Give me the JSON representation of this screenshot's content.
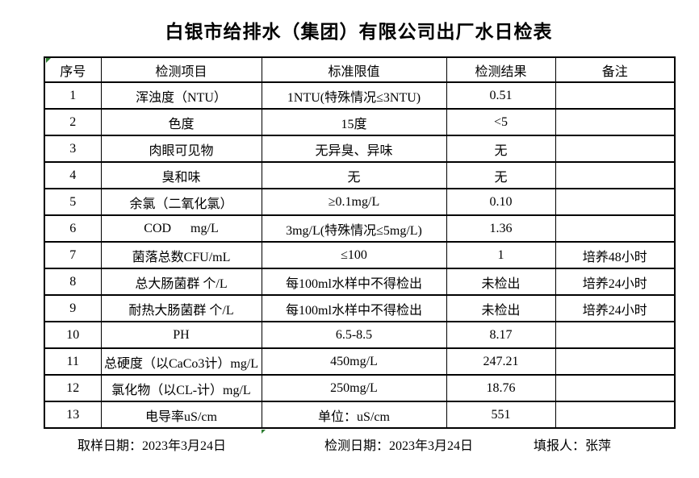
{
  "title": "白银市给排水（集团）有限公司出厂水日检表",
  "table": {
    "headers": [
      "序号",
      "检测项目",
      "标准限值",
      "检测结果",
      "备注"
    ],
    "rows": [
      [
        "1",
        "浑浊度（NTU）",
        "1NTU(特殊情况≤3NTU)",
        "0.51",
        ""
      ],
      [
        "2",
        "色度",
        "15度",
        "<5",
        ""
      ],
      [
        "3",
        "肉眼可见物",
        "无异臭、异味",
        "无",
        ""
      ],
      [
        "4",
        "臭和味",
        "无",
        "无",
        ""
      ],
      [
        "5",
        "余氯（二氧化氯）",
        "≥0.1mg/L",
        "0.10",
        ""
      ],
      [
        "6",
        "COD      mg/L",
        "3mg/L(特殊情况≤5mg/L)",
        "1.36",
        ""
      ],
      [
        "7",
        "菌落总数CFU/mL",
        "≤100",
        "1",
        "培养48小时"
      ],
      [
        "8",
        "总大肠菌群 个/L",
        "每100ml水样中不得检出",
        "未检出",
        "培养24小时"
      ],
      [
        "9",
        "耐热大肠菌群 个/L",
        "每100ml水样中不得检出",
        "未检出",
        "培养24小时"
      ],
      [
        "10",
        "PH",
        "6.5-8.5",
        "8.17",
        ""
      ],
      [
        "11",
        "总硬度（以CaCo3计）mg/L",
        "450mg/L",
        "247.21",
        ""
      ],
      [
        "12",
        "氯化物（以CL-计）mg/L",
        "250mg/L",
        "18.76",
        ""
      ],
      [
        "13",
        "电导率uS/cm",
        "单位：uS/cm",
        "551",
        ""
      ]
    ]
  },
  "footer": {
    "sampling_date": "取样日期：2023年3月24日",
    "test_date": "检测日期：2023年3月24日",
    "reporter": "填报人：张萍"
  },
  "colors": {
    "accent_green": "#2e7d32",
    "border": "#000000",
    "text": "#000000",
    "background": "#ffffff"
  }
}
